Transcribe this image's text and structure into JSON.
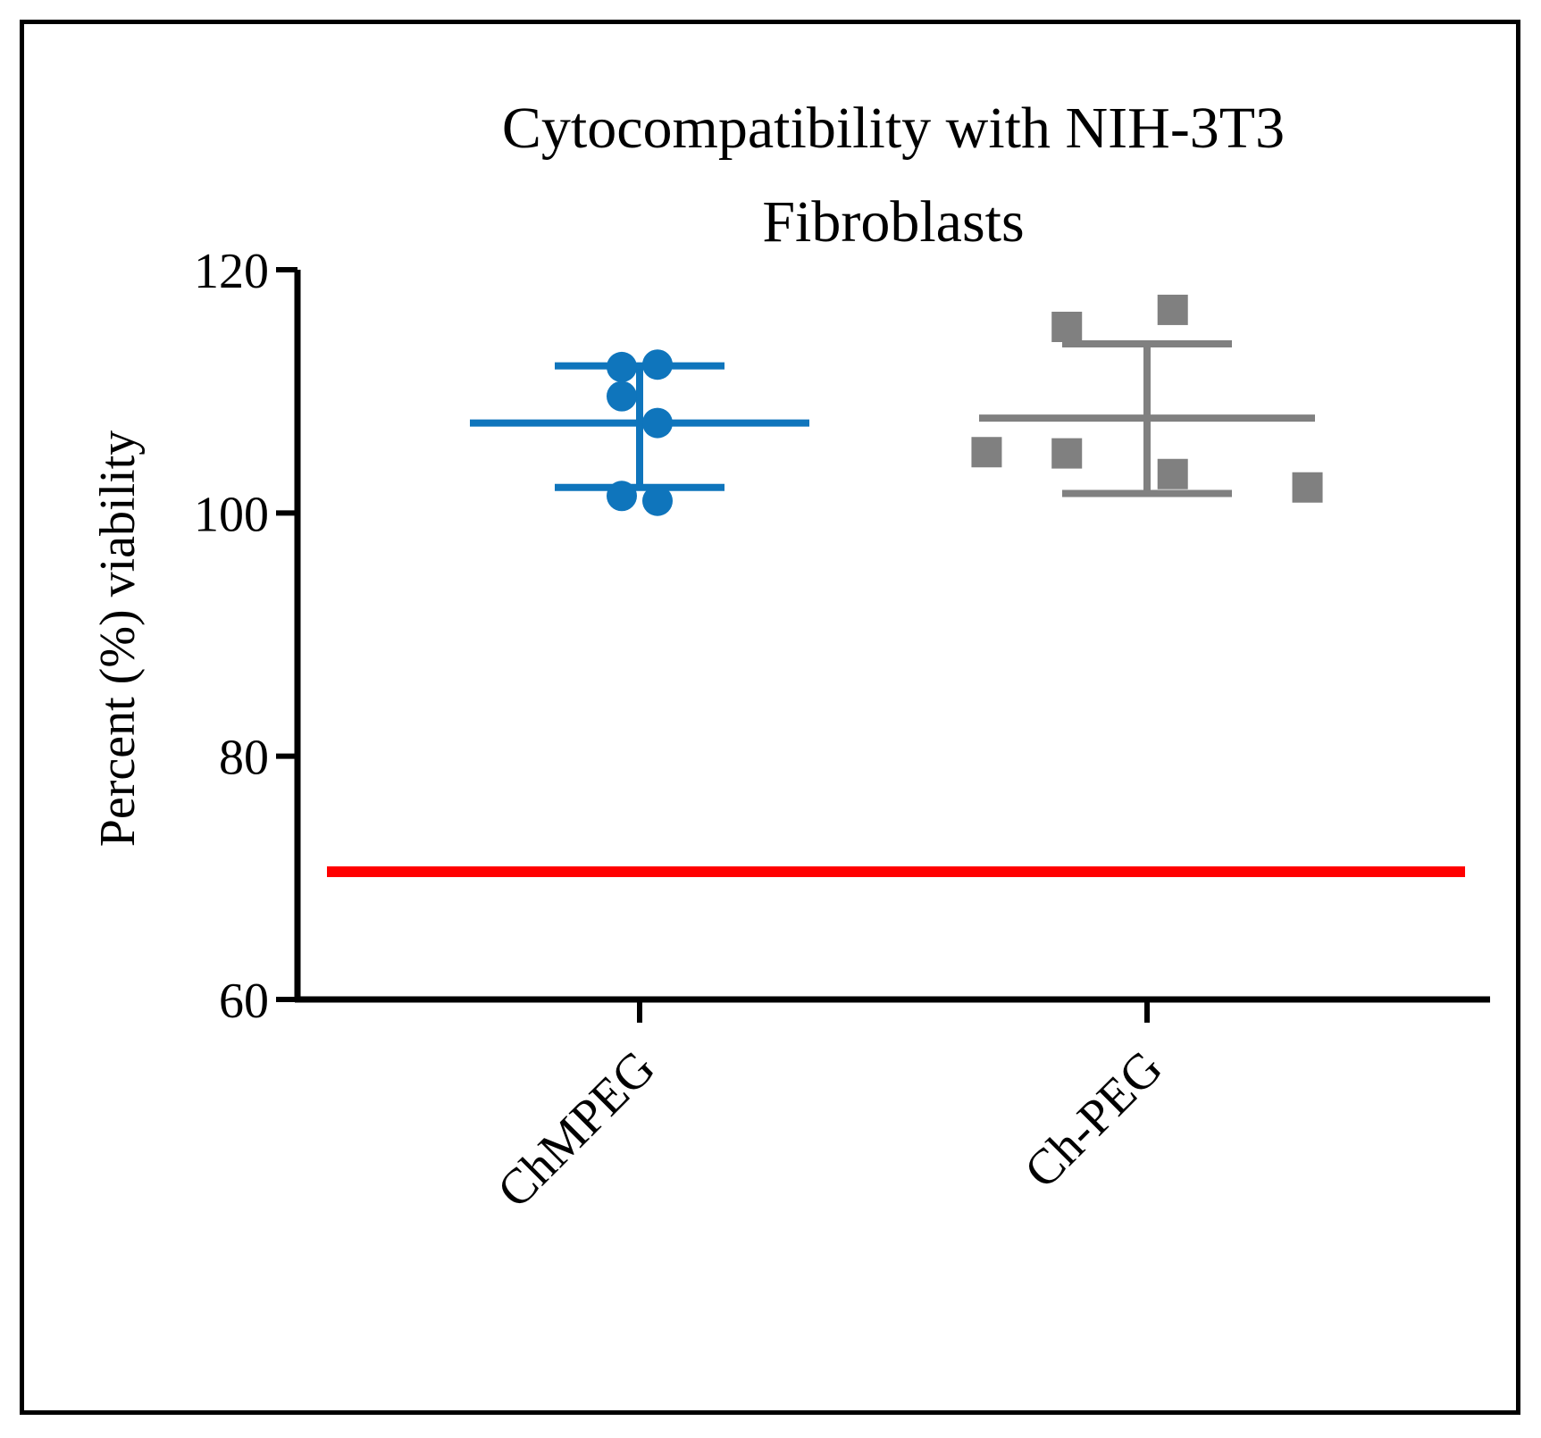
{
  "chart_data": {
    "type": "scatter",
    "title_lines": [
      "Cytocompatibility with NIH-3T3",
      "Fibroblasts"
    ],
    "ylabel": "Percent (%) viability",
    "xlabel": "",
    "ylim": [
      60,
      120
    ],
    "yticks": [
      60,
      80,
      100,
      120
    ],
    "categories": [
      "ChMPEG",
      "Ch-PEG"
    ],
    "reference_line": {
      "y": 70.5,
      "color": "#ff0000"
    },
    "series": [
      {
        "name": "ChMPEG",
        "marker": "circle",
        "color": "#0f75bc",
        "points": [
          {
            "offset": -0.1,
            "y": 112.0
          },
          {
            "offset": 0.1,
            "y": 112.2
          },
          {
            "offset": -0.1,
            "y": 109.6
          },
          {
            "offset": 0.1,
            "y": 107.4
          },
          {
            "offset": -0.1,
            "y": 101.4
          },
          {
            "offset": 0.1,
            "y": 101.0
          }
        ],
        "mean": 107.4,
        "sd_upper": 112.1,
        "sd_lower": 102.1
      },
      {
        "name": "Ch-PEG",
        "marker": "square",
        "color": "#808080",
        "points": [
          {
            "offset": -0.25,
            "y": 115.3
          },
          {
            "offset": 0.08,
            "y": 116.7
          },
          {
            "offset": -0.5,
            "y": 105.0
          },
          {
            "offset": -0.25,
            "y": 104.9
          },
          {
            "offset": 0.08,
            "y": 103.2
          },
          {
            "offset": 0.5,
            "y": 102.1
          }
        ],
        "mean": 107.8,
        "sd_upper": 113.9,
        "sd_lower": 101.6
      }
    ]
  }
}
